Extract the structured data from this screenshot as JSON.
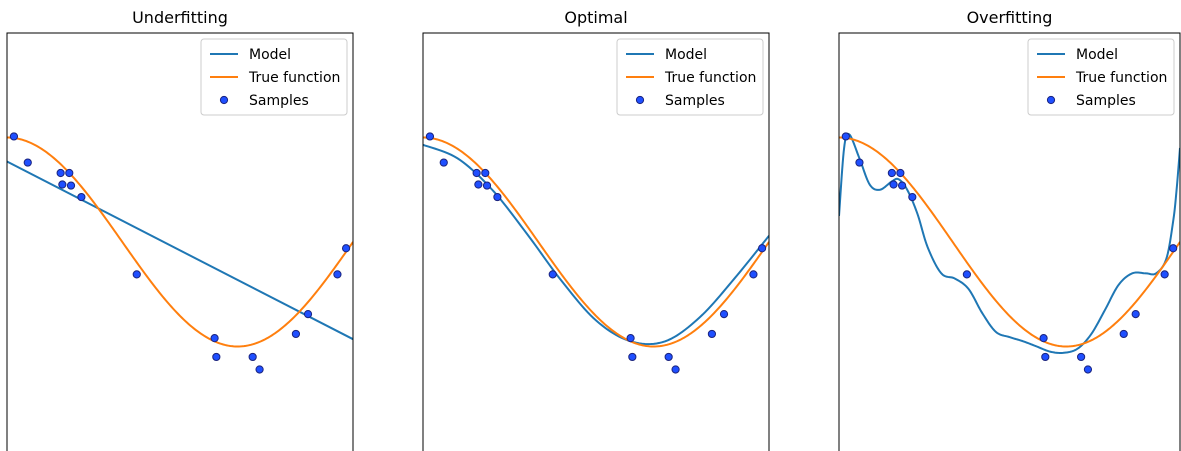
{
  "chart_data": [
    {
      "type": "line",
      "title": "Underfitting",
      "xlim": [
        0,
        1
      ],
      "ylim": [
        -2,
        2
      ],
      "xticks": "hidden",
      "yticks": "hidden",
      "grid": false,
      "legend": {
        "placement": "top-right",
        "entries": [
          "Model",
          "True function",
          "Samples"
        ]
      },
      "series": [
        {
          "name": "Model",
          "kind": "line",
          "color": "#1f77b4",
          "samples": "polynomial degree 1",
          "x": [
            0.0,
            1.0
          ],
          "y": [
            0.77,
            -0.93
          ]
        },
        {
          "name": "True function",
          "kind": "line",
          "color": "#ff7f0e",
          "samples": "cos(1.5*pi*x)"
        },
        {
          "name": "Samples",
          "kind": "scatter",
          "color": "#1f4fff",
          "edgecolor": "#1a237e"
        }
      ]
    },
    {
      "type": "line",
      "title": "Optimal",
      "xlim": [
        0,
        1
      ],
      "ylim": [
        -2,
        2
      ],
      "xticks": "hidden",
      "yticks": "hidden",
      "grid": false,
      "legend": {
        "placement": "top-right",
        "entries": [
          "Model",
          "True function",
          "Samples"
        ]
      },
      "series": [
        {
          "name": "Model",
          "kind": "line",
          "color": "#1f77b4",
          "samples": "polynomial degree 4",
          "x": [
            0.0,
            0.1,
            0.2,
            0.3,
            0.4,
            0.5,
            0.6,
            0.7,
            0.8,
            0.9,
            1.0
          ],
          "y": [
            0.93,
            0.8,
            0.5,
            0.08,
            -0.37,
            -0.75,
            -0.95,
            -0.95,
            -0.72,
            -0.35,
            0.06
          ]
        },
        {
          "name": "True function",
          "kind": "line",
          "color": "#ff7f0e",
          "samples": "cos(1.5*pi*x)"
        },
        {
          "name": "Samples",
          "kind": "scatter",
          "color": "#1f4fff",
          "edgecolor": "#1a237e"
        }
      ]
    },
    {
      "type": "line",
      "title": "Overfitting",
      "xlim": [
        0,
        1
      ],
      "ylim": [
        -2,
        2
      ],
      "xticks": "hidden",
      "yticks": "hidden",
      "grid": false,
      "legend": {
        "placement": "top-right",
        "entries": [
          "Model",
          "True function",
          "Samples"
        ]
      },
      "series": [
        {
          "name": "Model",
          "kind": "line",
          "color": "#1f77b4",
          "samples": "polynomial degree 15",
          "x": [
            0.0,
            0.015,
            0.03,
            0.06,
            0.09,
            0.12,
            0.155,
            0.175,
            0.2,
            0.23,
            0.26,
            0.3,
            0.34,
            0.38,
            0.42,
            0.46,
            0.5,
            0.54,
            0.58,
            0.62,
            0.66,
            0.7,
            0.74,
            0.78,
            0.82,
            0.86,
            0.9,
            0.93,
            0.96,
            0.98,
            0.99,
            1.0
          ],
          "y": [
            0.25,
            0.9,
            1.03,
            0.8,
            0.55,
            0.5,
            0.58,
            0.6,
            0.5,
            0.27,
            -0.05,
            -0.3,
            -0.35,
            -0.45,
            -0.68,
            -0.86,
            -0.91,
            -0.95,
            -1.0,
            -1.05,
            -1.06,
            -1.02,
            -0.88,
            -0.65,
            -0.41,
            -0.3,
            -0.3,
            -0.3,
            -0.16,
            0.2,
            0.5,
            0.9
          ]
        },
        {
          "name": "True function",
          "kind": "line",
          "color": "#ff7f0e",
          "samples": "cos(1.5*pi*x)"
        },
        {
          "name": "Samples",
          "kind": "scatter",
          "color": "#1f4fff",
          "edgecolor": "#1a237e"
        }
      ]
    }
  ],
  "samples": {
    "x": [
      0.02,
      0.06,
      0.155,
      0.16,
      0.18,
      0.185,
      0.215,
      0.375,
      0.6,
      0.605,
      0.71,
      0.73,
      0.835,
      0.87,
      0.955,
      0.98
    ],
    "y": [
      1.01,
      0.76,
      0.66,
      0.55,
      0.66,
      0.54,
      0.43,
      -0.31,
      -0.92,
      -1.1,
      -1.1,
      -1.22,
      -0.88,
      -0.69,
      -0.31,
      -0.06
    ]
  }
}
